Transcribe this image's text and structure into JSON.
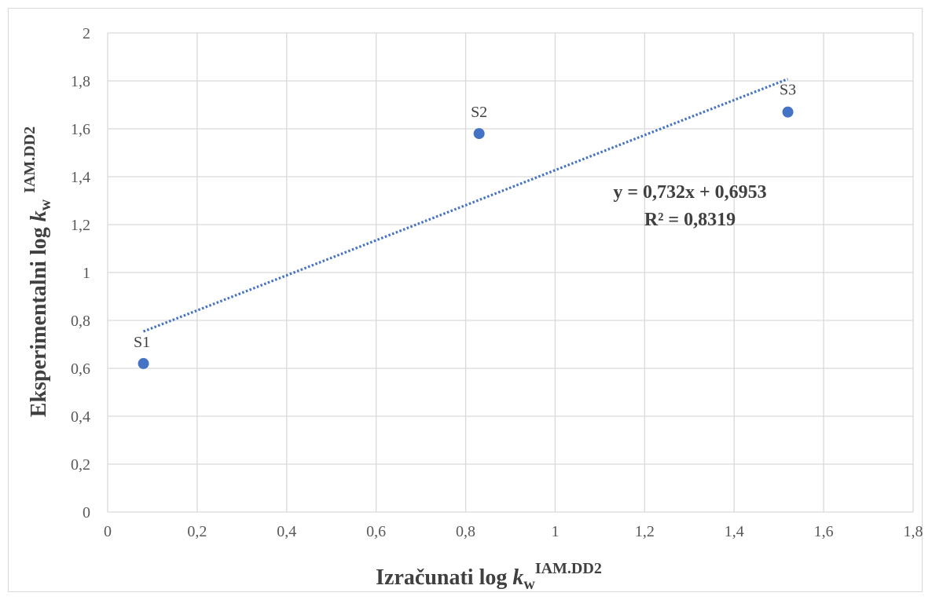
{
  "chart_data": {
    "type": "scatter",
    "xlabel": {
      "main": "Izračunati log ",
      "k": "k",
      "sub": "w",
      "sup": "IAM.DD2"
    },
    "ylabel": {
      "main": "Eksperimentalni log ",
      "k": "k",
      "sub": "w",
      "sup": "IAM.DD2"
    },
    "xlim": [
      0,
      1.8
    ],
    "ylim": [
      0,
      2
    ],
    "x_ticks": [
      "0",
      "0,2",
      "0,4",
      "0,6",
      "0,8",
      "1",
      "1,2",
      "1,4",
      "1,6",
      "1,8"
    ],
    "y_ticks": [
      "0",
      "0,2",
      "0,4",
      "0,6",
      "0,8",
      "1",
      "1,2",
      "1,4",
      "1,6",
      "1,8",
      "2"
    ],
    "grid": true,
    "points": [
      {
        "label": "S1",
        "x": 0.08,
        "y": 0.62
      },
      {
        "label": "S2",
        "x": 0.83,
        "y": 1.58
      },
      {
        "label": "S3",
        "x": 1.52,
        "y": 1.67
      }
    ],
    "trendline": {
      "type": "linear",
      "slope": 0.732,
      "intercept": 0.6953,
      "x_range": [
        0.08,
        1.52
      ],
      "equation": "y = 0,732x + 0,6953",
      "r_squared": "R² = 0,8319"
    },
    "colors": {
      "marker": "#4472c4",
      "trendline": "#4472c4",
      "grid": "#d9d9d9"
    }
  }
}
